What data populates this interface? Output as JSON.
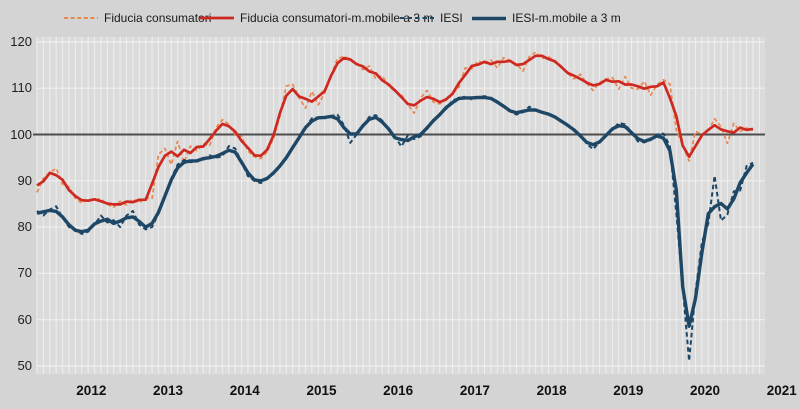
{
  "colors": {
    "background": "#d4d4d4",
    "plot_background": "#dbdbdb",
    "gridline": "#efefef",
    "baseline_line": "#4d4d4d",
    "text": "#1a1a1a",
    "fiducia_monthly": "#E8874F",
    "fiducia_mm3": "#CE2920",
    "iesi": "#1E4766",
    "iesi_mm3": "#1E4766"
  },
  "chart_data": {
    "type": "line",
    "x_start": "2011-11",
    "x_end": "2021-03",
    "x_interval": "month",
    "xticks": [
      "2012",
      "2013",
      "2014",
      "2015",
      "2016",
      "2017",
      "2018",
      "2019",
      "2020",
      "2021"
    ],
    "yticks": [
      120,
      110,
      100,
      90,
      80,
      70,
      60,
      50
    ],
    "ylim": [
      50,
      120
    ],
    "baseline": 100,
    "grid": "on",
    "legend_position": "top",
    "series": [
      {
        "name": "Fiducia consumatori",
        "color": "#E8874F",
        "line_style": "dashed",
        "width": 1.7,
        "values": [
          87.5,
          90.5,
          91.8,
          92.7,
          89.2,
          88.7,
          86.2,
          85.2,
          86,
          85.9,
          86.1,
          84.9,
          84.3,
          85.6,
          84.8,
          86,
          85.3,
          86.3,
          86.2,
          95.7,
          97,
          93.5,
          98.5,
          94,
          97.5,
          96.5,
          98,
          97.6,
          101.5,
          103.2,
          102.2,
          99.9,
          99.6,
          96.4,
          95.2,
          94.8,
          96.2,
          99.2,
          104,
          110.5,
          110.8,
          108,
          105.7,
          109.3,
          106.4,
          109,
          112.8,
          116.4,
          116.9,
          116.2,
          115.4,
          114,
          114.8,
          112,
          112.7,
          110.5,
          109.3,
          108.6,
          106.5,
          104.6,
          107.9,
          109.5,
          107,
          106.6,
          107.4,
          108.8,
          110.2,
          114.4,
          114.2,
          115.9,
          115.2,
          116.1,
          114.4,
          116.6,
          116,
          115.2,
          113.7,
          116.8,
          117.8,
          116.4,
          116.8,
          115.8,
          114.8,
          113.2,
          112,
          113,
          111,
          109.5,
          111.2,
          112,
          112.3,
          109.8,
          112.5,
          110,
          109.8,
          111.5,
          108.5,
          110.8,
          111.8,
          110.9,
          101,
          null,
          94.3,
          100.6,
          100.1,
          100.8,
          103.4,
          101.7,
          98.1,
          102.4,
          100.7,
          101.4,
          100.9
        ]
      },
      {
        "name": "Fiducia consumatori-m.mobile a 3 m",
        "color": "#CE2920",
        "line_style": "solid",
        "width": 2.7,
        "values": [
          89,
          89.9,
          91.7,
          91.2,
          90.2,
          88,
          86.7,
          85.8,
          85.7,
          86,
          85.6,
          85.1,
          84.9,
          84.9,
          85.5,
          85.4,
          85.9,
          85.9,
          89.4,
          93,
          95.4,
          96.3,
          95.3,
          96.7,
          96,
          97.3,
          97.4,
          99,
          100.8,
          102.3,
          101.8,
          100.6,
          98.6,
          97.1,
          95.5,
          95.4,
          96.7,
          99.8,
          104.6,
          108.4,
          109.8,
          108.2,
          107.7,
          107.1,
          108.2,
          109.4,
          112.7,
          115.4,
          116.5,
          116.2,
          115.2,
          114.7,
          113.6,
          113.2,
          111.7,
          110.8,
          109.5,
          108.1,
          106.6,
          106.3,
          107.3,
          108.1,
          107.7,
          107,
          107.6,
          108.8,
          111.1,
          112.9,
          114.8,
          115.1,
          115.7,
          115.2,
          115.7,
          115.7,
          115.9,
          115,
          115.2,
          116.1,
          117,
          117,
          116.3,
          115.8,
          114.6,
          113.3,
          112.7,
          112,
          111.2,
          110.6,
          110.9,
          111.8,
          111.4,
          111.5,
          110.8,
          110.8,
          110.4,
          109.9,
          110.3,
          110.4,
          111.2,
          107.9,
          104,
          97.6,
          95.2,
          97.5,
          99.8,
          101,
          102,
          101.1,
          100.7,
          100.4,
          101.5,
          101,
          101.2
        ]
      },
      {
        "name": "IESI",
        "color": "#1E4766",
        "line_style": "dashed",
        "width": 2,
        "values": [
          83.5,
          82.5,
          83.8,
          84.5,
          82,
          80,
          79.5,
          78.5,
          79,
          80.5,
          82.5,
          81,
          81.5,
          80,
          82.5,
          83.5,
          80.5,
          79.5,
          80,
          83,
          86.5,
          90.5,
          93.5,
          94.5,
          94,
          94.3,
          94.5,
          95.5,
          95,
          95.3,
          97.5,
          97,
          94,
          91,
          90,
          89.5,
          90.5,
          91.5,
          93,
          95,
          97,
          99.5,
          101.5,
          103.5,
          103.7,
          103.5,
          104,
          104.3,
          102,
          98.2,
          100,
          102,
          103.8,
          104.2,
          103,
          101,
          99.5,
          97.4,
          99.8,
          99,
          99.6,
          101.5,
          103,
          104.5,
          105.5,
          107.4,
          107.8,
          108.2,
          107.6,
          108,
          108.3,
          107.8,
          107.2,
          106,
          105,
          104.3,
          104.8,
          106,
          105.2,
          104.8,
          104.5,
          103.8,
          103,
          102,
          101,
          100,
          98,
          96.8,
          98.5,
          100,
          101,
          102.5,
          102.2,
          100.5,
          98.5,
          98.3,
          98.8,
          100,
          100.2,
          97.5,
          83,
          null,
          51.1,
          66,
          76.7,
          80.8,
          91.1,
          81.4,
          82.7,
          87.7,
          87.9,
          93.2,
          93.9
        ]
      },
      {
        "name": "IESI-m.mobile a 3 m",
        "color": "#1E4766",
        "line_style": "solid",
        "width": 3.4,
        "values": [
          83,
          83.3,
          83.6,
          83.4,
          82.2,
          80.5,
          79.3,
          79,
          79.3,
          80.7,
          81.3,
          81.7,
          80.8,
          81.3,
          82,
          82.2,
          81.2,
          80,
          80.8,
          83.2,
          86.7,
          90.2,
          92.8,
          94,
          94.3,
          94.3,
          94.8,
          95,
          95.3,
          95.9,
          96.6,
          96.2,
          94,
          91.7,
          90.2,
          90,
          90.5,
          91.7,
          93.2,
          95,
          97.2,
          99.3,
          101.5,
          102.9,
          103.6,
          103.7,
          103.9,
          103.4,
          101.5,
          100.1,
          100.1,
          101.9,
          103.3,
          103.7,
          102.7,
          101.2,
          99.3,
          98.9,
          98.7,
          99.5,
          100,
          101.4,
          103,
          104.3,
          105.8,
          106.9,
          107.8,
          107.9,
          107.9,
          108,
          108,
          107.8,
          107,
          106.1,
          105.1,
          104.7,
          105,
          105.3,
          105.3,
          104.8,
          104.4,
          103.8,
          102.9,
          102,
          101,
          99.7,
          98.3,
          97.8,
          98.4,
          99.8,
          101.2,
          101.9,
          101.7,
          100.4,
          99.1,
          98.5,
          99,
          99.7,
          99.2,
          96.5,
          88,
          67.1,
          58.6,
          64.6,
          74.5,
          82.9,
          84.4,
          85.1,
          83.9,
          86.1,
          89.6,
          91.7,
          93.6
        ]
      }
    ]
  }
}
